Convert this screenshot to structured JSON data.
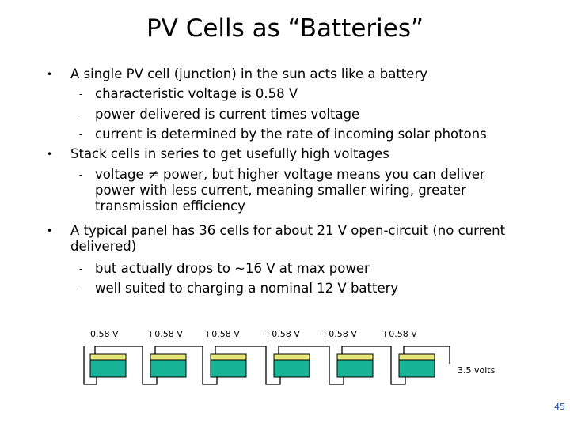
{
  "slide": {
    "title": "PV Cells as “Batteries”",
    "bullets": [
      {
        "text": "A single PV cell (junction) in the sun acts like a battery",
        "subs": [
          "characteristic voltage is 0.58 V",
          "power delivered is current times voltage",
          "current is determined by the rate of incoming solar photons"
        ]
      },
      {
        "text": "Stack cells in series to get usefully high voltages",
        "subs": [
          "voltage ≠ power, but higher voltage means you can deliver power with less current, meaning smaller wiring, greater transmission efficiency"
        ]
      },
      {
        "text": "A typical panel has 36 cells for about 21 V open-circuit (no current delivered)",
        "subs": [
          "but actually drops to ~16 V at max power",
          "well suited to charging a nominal 12 V battery"
        ]
      }
    ],
    "diagram": {
      "cell_labels": [
        "0.58 V",
        "+0.58 V",
        "+0.58 V",
        "+0.58 V",
        "+0.58 V",
        "+0.58 V"
      ],
      "total_label": "3.5 volts",
      "colors": {
        "cell_top": "#e8e87a",
        "cell_body": "#17b497",
        "wire": "#000000"
      }
    },
    "page_number": "45"
  }
}
